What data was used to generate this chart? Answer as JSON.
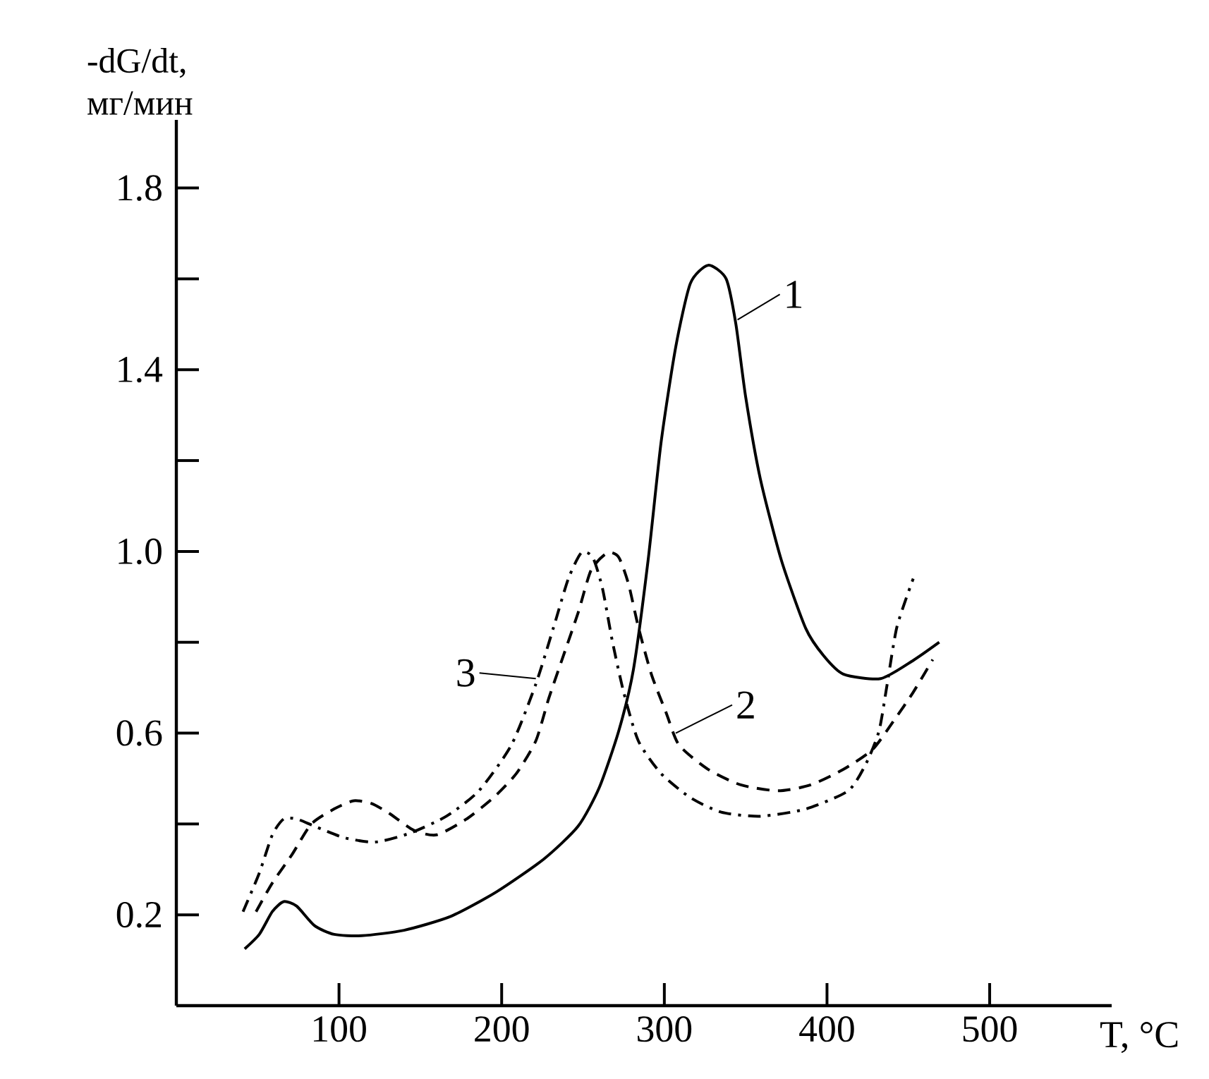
{
  "chart_data": {
    "type": "line",
    "xlabel": "T, °C",
    "ylabel": "-dG/dt, мг/мин",
    "xlim": [
      0,
      575
    ],
    "ylim": [
      0,
      1.95
    ],
    "xticks": [
      100,
      200,
      300,
      400,
      500
    ],
    "yticks": [
      0.2,
      {
        "value": 0.4,
        "label": null
      },
      0.6,
      {
        "value": 0.8,
        "label": null
      },
      {
        "value": 1.0,
        "label": "1.0"
      },
      {
        "value": 1.2,
        "label": null
      },
      1.4,
      {
        "value": 1.6,
        "label": null
      },
      1.8
    ],
    "marker": "none",
    "series": [
      {
        "color": "#000000",
        "line_style": "solid",
        "x": [
          42,
          51,
          59,
          66,
          74,
          85,
          97,
          114,
          140,
          169,
          197,
          226,
          247,
          260,
          272,
          281,
          290,
          298,
          307,
          316,
          327,
          338,
          344,
          350,
          359,
          372,
          387,
          398,
          410,
          433,
          453,
          469
        ],
        "values": [
          0.125,
          0.157,
          0.207,
          0.229,
          0.219,
          0.176,
          0.157,
          0.154,
          0.166,
          0.197,
          0.251,
          0.323,
          0.395,
          0.48,
          0.605,
          0.74,
          0.98,
          1.24,
          1.45,
          1.59,
          1.63,
          1.6,
          1.5,
          1.34,
          1.16,
          0.98,
          0.83,
          0.77,
          0.73,
          0.72,
          0.76,
          0.8
        ]
      },
      {
        "color": "#000000",
        "line_style": "dashed",
        "x": [
          49,
          59,
          71,
          83,
          97,
          109,
          120,
          131,
          146,
          160,
          178,
          195,
          209,
          221,
          229,
          238,
          247,
          255,
          265,
          272,
          278,
          284,
          292,
          301,
          309,
          327,
          347,
          370,
          390,
          410,
          428,
          441,
          453,
          465
        ],
        "values": [
          0.207,
          0.27,
          0.332,
          0.4,
          0.433,
          0.451,
          0.445,
          0.423,
          0.386,
          0.376,
          0.41,
          0.458,
          0.511,
          0.583,
          0.677,
          0.771,
          0.865,
          0.959,
          0.997,
          0.987,
          0.928,
          0.834,
          0.73,
          0.646,
          0.574,
          0.52,
          0.486,
          0.473,
          0.486,
          0.52,
          0.564,
          0.627,
          0.69,
          0.762
        ]
      },
      {
        "color": "#000000",
        "line_style": "dashdot",
        "x": [
          41,
          51,
          59,
          66,
          74,
          85,
          103,
          122,
          143,
          166,
          186,
          206,
          221,
          232,
          241,
          249,
          256,
          262,
          268,
          275,
          284,
          298,
          316,
          335,
          359,
          387,
          413,
          424,
          432,
          437,
          443,
          453
        ],
        "values": [
          0.207,
          0.292,
          0.376,
          0.411,
          0.411,
          0.395,
          0.37,
          0.36,
          0.379,
          0.417,
          0.473,
          0.574,
          0.708,
          0.834,
          0.94,
          0.997,
          0.987,
          0.918,
          0.803,
          0.69,
          0.583,
          0.511,
          0.458,
          0.426,
          0.417,
          0.433,
          0.473,
          0.533,
          0.605,
          0.708,
          0.834,
          0.94
        ]
      }
    ],
    "annotations": [
      {
        "text": "1",
        "x": 345,
        "y": 1.51
      },
      {
        "text": "2",
        "x": 307,
        "y": 0.6
      },
      {
        "text": "3",
        "x": 221,
        "y": 0.72
      }
    ]
  }
}
